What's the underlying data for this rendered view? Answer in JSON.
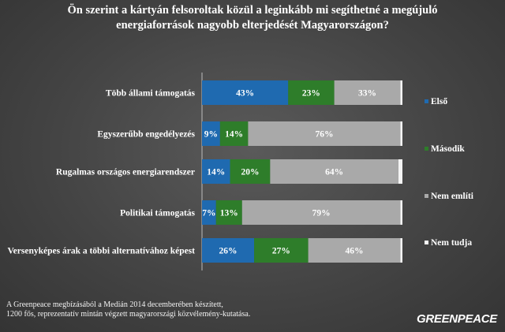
{
  "title": {
    "line1": "Ön szerint a kártyán felsoroltak közül a leginkább mi segíthetné a megújuló",
    "line2": "energiaforrások nagyobb elterjedését Magyarországon?"
  },
  "footnote": {
    "line1": "A Greenpeace megbízásából a Medián 2014 decemberében készített,",
    "line2": "1200 fős, reprezentatív mintán végzett magyarországi közvélemény-kutatása."
  },
  "logo": "GREENPEACE",
  "colors": {
    "Első": "#1f6ab0",
    "Második": "#2e7d2a",
    "Nem említi": "#a9a9a9",
    "Nem tudja": "#f4f4f4"
  },
  "chart_data": {
    "type": "bar",
    "orientation": "horizontal",
    "stacked": true,
    "unit": "%",
    "xlim": [
      0,
      100
    ],
    "grid": false,
    "legend_position": "right",
    "categories": [
      "Több állami támogatás",
      "Egyszerűbb engedélyezés",
      "Rugalmas országos energiarendszer",
      "Politikai támogatás",
      "Versenyképes árak a többi alternatívához képest"
    ],
    "series": [
      {
        "name": "Első",
        "values": [
          43,
          9,
          14,
          7,
          26
        ],
        "labels": [
          "43%",
          "9%",
          "14%",
          "7%",
          "26%"
        ]
      },
      {
        "name": "Második",
        "values": [
          23,
          14,
          20,
          13,
          27
        ],
        "labels": [
          "23%",
          "14%",
          "20%",
          "13%",
          "27%"
        ]
      },
      {
        "name": "Nem említi",
        "values": [
          33,
          76,
          64,
          79,
          46
        ],
        "labels": [
          "33%",
          "76%",
          "64%",
          "79%",
          "46%"
        ]
      },
      {
        "name": "Nem tudja",
        "values": [
          1,
          1,
          2,
          1,
          1
        ],
        "labels": [
          "",
          "",
          "",
          "",
          ""
        ]
      }
    ]
  }
}
